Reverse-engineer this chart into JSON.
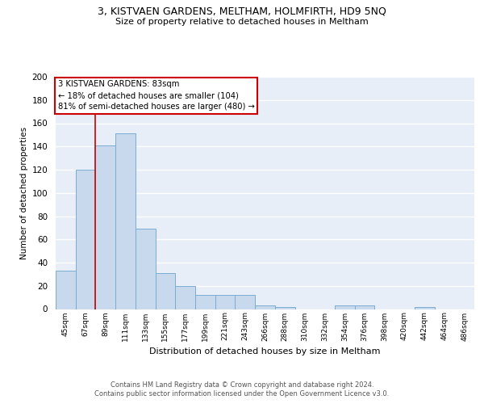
{
  "title1": "3, KISTVAEN GARDENS, MELTHAM, HOLMFIRTH, HD9 5NQ",
  "title2": "Size of property relative to detached houses in Meltham",
  "xlabel": "Distribution of detached houses by size in Meltham",
  "ylabel": "Number of detached properties",
  "bar_color": "#c8d9ee",
  "bar_edge_color": "#7aadd4",
  "bg_color": "#e8eef8",
  "bin_labels": [
    "45sqm",
    "67sqm",
    "89sqm",
    "111sqm",
    "133sqm",
    "155sqm",
    "177sqm",
    "199sqm",
    "221sqm",
    "243sqm",
    "266sqm",
    "288sqm",
    "310sqm",
    "332sqm",
    "354sqm",
    "376sqm",
    "398sqm",
    "420sqm",
    "442sqm",
    "464sqm",
    "486sqm"
  ],
  "bar_heights": [
    33,
    120,
    141,
    151,
    69,
    31,
    20,
    12,
    12,
    12,
    3,
    2,
    0,
    0,
    3,
    3,
    0,
    0,
    2,
    0,
    0
  ],
  "ylim": [
    0,
    200
  ],
  "yticks": [
    0,
    20,
    40,
    60,
    80,
    100,
    120,
    140,
    160,
    180,
    200
  ],
  "annotation_text": "3 KISTVAEN GARDENS: 83sqm\n← 18% of detached houses are smaller (104)\n81% of semi-detached houses are larger (480) →",
  "annotation_box_color": "#ffffff",
  "annotation_box_edge": "#cc0000",
  "vline_color": "#cc0000",
  "vline_x": 1.5,
  "footer1": "Contains HM Land Registry data © Crown copyright and database right 2024.",
  "footer2": "Contains public sector information licensed under the Open Government Licence v3.0."
}
